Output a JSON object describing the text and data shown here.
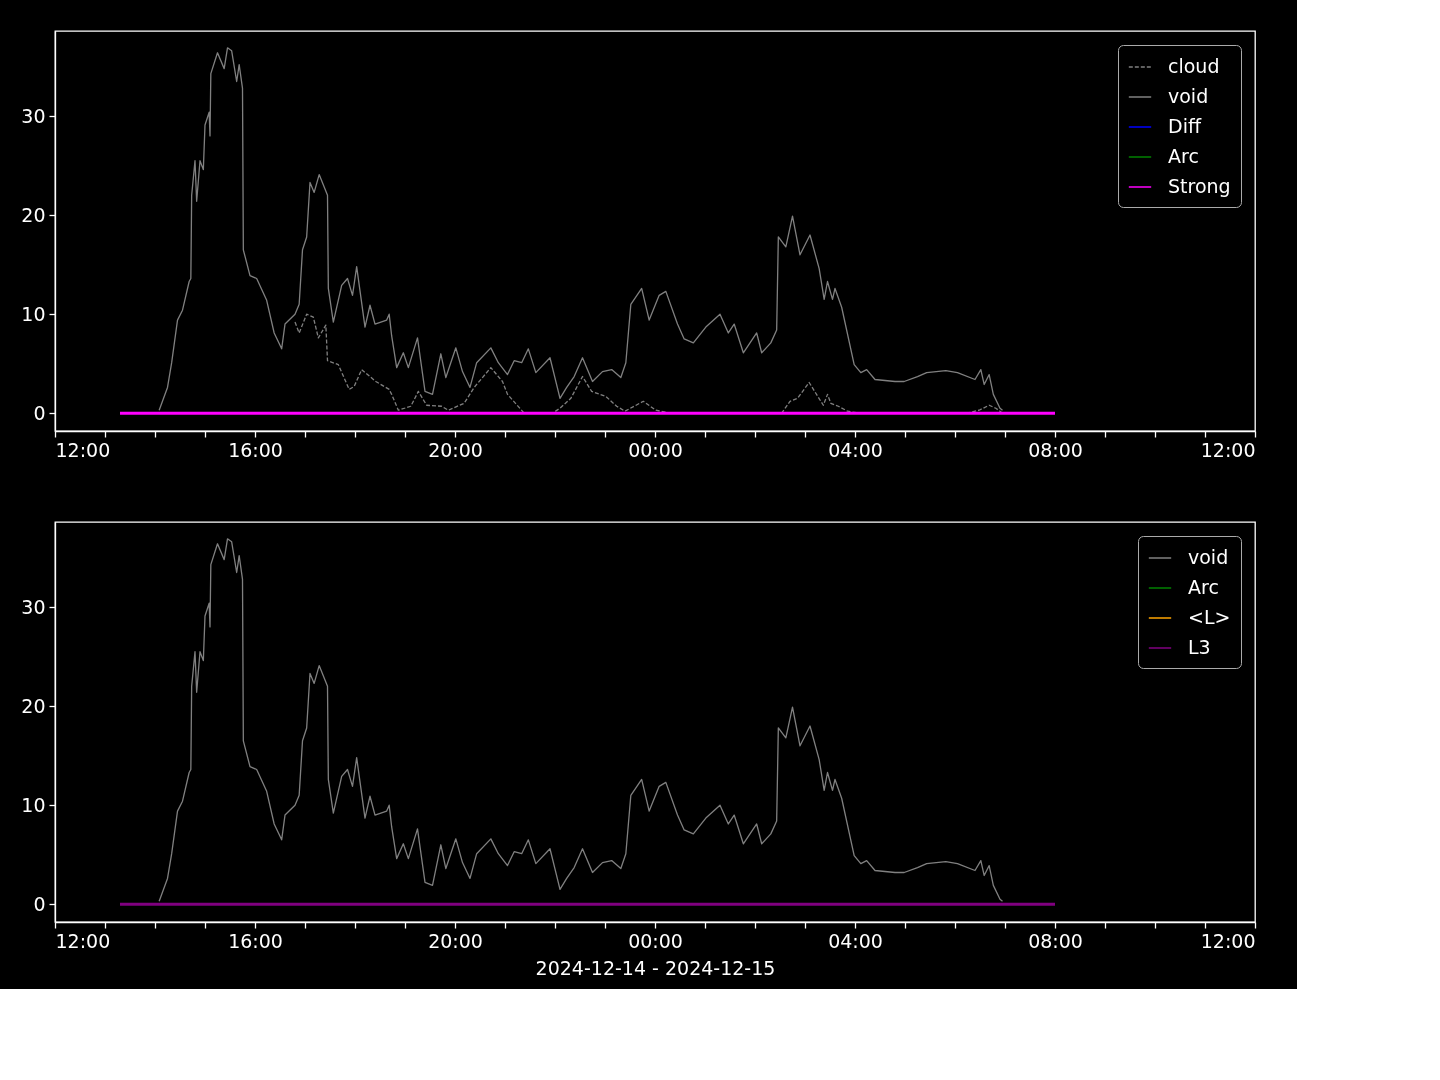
{
  "chart_data": [
    {
      "type": "line",
      "legend": "top right",
      "xlim": [
        "2024-12-14T12:00",
        "2024-12-15T12:00"
      ],
      "xticks": [
        {
          "value": "2024-12-14T12:00",
          "label": "12:00"
        },
        {
          "value": "2024-12-14T13:00",
          "label": null
        },
        {
          "value": "2024-12-14T14:00",
          "label": null
        },
        {
          "value": "2024-12-14T15:00",
          "label": null
        },
        {
          "value": "2024-12-14T16:00",
          "label": "16:00"
        },
        {
          "value": "2024-12-14T17:00",
          "label": null
        },
        {
          "value": "2024-12-14T18:00",
          "label": null
        },
        {
          "value": "2024-12-14T19:00",
          "label": null
        },
        {
          "value": "2024-12-14T20:00",
          "label": "20:00"
        },
        {
          "value": "2024-12-14T21:00",
          "label": null
        },
        {
          "value": "2024-12-14T22:00",
          "label": null
        },
        {
          "value": "2024-12-14T23:00",
          "label": null
        },
        {
          "value": "2024-12-15T00:00",
          "label": "00:00"
        },
        {
          "value": "2024-12-15T01:00",
          "label": null
        },
        {
          "value": "2024-12-15T02:00",
          "label": null
        },
        {
          "value": "2024-12-15T03:00",
          "label": null
        },
        {
          "value": "2024-12-15T04:00",
          "label": "04:00"
        },
        {
          "value": "2024-12-15T05:00",
          "label": null
        },
        {
          "value": "2024-12-15T06:00",
          "label": null
        },
        {
          "value": "2024-12-15T07:00",
          "label": null
        },
        {
          "value": "2024-12-15T08:00",
          "label": "08:00"
        },
        {
          "value": "2024-12-15T09:00",
          "label": null
        },
        {
          "value": "2024-12-15T10:00",
          "label": null
        },
        {
          "value": "2024-12-15T11:00",
          "label": null
        },
        {
          "value": "2024-12-15T12:00",
          "label": "12:00"
        }
      ],
      "ylim": [
        -1.8,
        38.6
      ],
      "yticks": [
        0,
        10,
        20,
        30
      ],
      "series": [
        {
          "name": "cloud",
          "color": "#808080",
          "line_style": "dashed",
          "x": [
            "2024-12-14T16:48",
            "2024-12-14T16:53",
            "2024-12-14T17:02",
            "2024-12-14T17:10",
            "2024-12-14T17:16",
            "2024-12-14T17:25",
            "2024-12-14T17:27",
            "2024-12-14T17:40",
            "2024-12-14T17:53",
            "2024-12-14T17:59",
            "2024-12-14T18:08",
            "2024-12-14T18:25",
            "2024-12-14T18:41",
            "2024-12-14T18:44",
            "2024-12-14T18:52",
            "2024-12-14T19:07",
            "2024-12-14T19:16",
            "2024-12-14T19:26",
            "2024-12-14T19:44",
            "2024-12-14T19:52",
            "2024-12-14T20:11",
            "2024-12-14T20:23",
            "2024-12-14T20:43",
            "2024-12-14T20:57",
            "2024-12-14T21:03",
            "2024-12-14T21:23",
            "2024-12-14T21:57",
            "2024-12-14T22:06",
            "2024-12-14T22:19",
            "2024-12-14T22:33",
            "2024-12-14T22:44",
            "2024-12-14T23:01",
            "2024-12-14T23:14",
            "2024-12-14T23:24",
            "2024-12-14T23:46",
            "2024-12-15T00:01",
            "2024-12-15T00:18",
            "2024-12-15T02:32",
            "2024-12-15T02:42",
            "2024-12-15T02:51",
            "2024-12-15T03:05",
            "2024-12-15T03:16",
            "2024-12-15T03:22",
            "2024-12-15T03:27",
            "2024-12-15T03:31",
            "2024-12-15T03:40",
            "2024-12-15T03:51",
            "2024-12-15T04:05",
            "2024-12-15T06:15",
            "2024-12-15T06:29",
            "2024-12-15T06:41",
            "2024-12-15T06:49",
            "2024-12-15T06:57"
          ],
          "values": [
            9.2,
            8.1,
            10,
            9.7,
            7.6,
            8.9,
            5.3,
            4.9,
            2.4,
            2.7,
            4.4,
            3.2,
            2.4,
            1.9,
            0.3,
            0.7,
            2.2,
            0.8,
            0.7,
            0.3,
            1,
            2.6,
            4.6,
            3.2,
            1.9,
            0,
            0,
            0.5,
            1.5,
            3.7,
            2.2,
            1.7,
            0.7,
            0.2,
            1.2,
            0.3,
            0,
            0,
            1.2,
            1.5,
            3.1,
            1.6,
            0.8,
            1.9,
            1,
            0.7,
            0.2,
            0,
            0,
            0.3,
            0.8,
            0.5,
            0
          ]
        },
        {
          "name": "void",
          "color": "#808080",
          "x": [
            "2024-12-14T14:05",
            "2024-12-14T14:15",
            "2024-12-14T14:20",
            "2024-12-14T14:27",
            "2024-12-14T14:33",
            "2024-12-14T14:41",
            "2024-12-14T14:43",
            "2024-12-14T14:44",
            "2024-12-14T14:48",
            "2024-12-14T14:50",
            "2024-12-14T14:54",
            "2024-12-14T14:58",
            "2024-12-14T15:00",
            "2024-12-14T15:05",
            "2024-12-14T15:06",
            "2024-12-14T15:07",
            "2024-12-14T15:15",
            "2024-12-14T15:23",
            "2024-12-14T15:27",
            "2024-12-14T15:32",
            "2024-12-14T15:38",
            "2024-12-14T15:41",
            "2024-12-14T15:45",
            "2024-12-14T15:46",
            "2024-12-14T15:54",
            "2024-12-14T16:02",
            "2024-12-14T16:14",
            "2024-12-14T16:23",
            "2024-12-14T16:32",
            "2024-12-14T16:36",
            "2024-12-14T16:48",
            "2024-12-14T16:53",
            "2024-12-14T16:57",
            "2024-12-14T17:02",
            "2024-12-14T17:06",
            "2024-12-14T17:11",
            "2024-12-14T17:17",
            "2024-12-14T17:27",
            "2024-12-14T17:28",
            "2024-12-14T17:34",
            "2024-12-14T17:44",
            "2024-12-14T17:51",
            "2024-12-14T17:57",
            "2024-12-14T18:02",
            "2024-12-14T18:12",
            "2024-12-14T18:18",
            "2024-12-14T18:24",
            "2024-12-14T18:38",
            "2024-12-14T18:41",
            "2024-12-14T18:44",
            "2024-12-14T18:50",
            "2024-12-14T18:58",
            "2024-12-14T19:04",
            "2024-12-14T19:15",
            "2024-12-14T19:24",
            "2024-12-14T19:33",
            "2024-12-14T19:43",
            "2024-12-14T19:49",
            "2024-12-14T20:01",
            "2024-12-14T20:09",
            "2024-12-14T20:18",
            "2024-12-14T20:26",
            "2024-12-14T20:43",
            "2024-12-14T20:52",
            "2024-12-14T21:03",
            "2024-12-14T21:11",
            "2024-12-14T21:20",
            "2024-12-14T21:28",
            "2024-12-14T21:37",
            "2024-12-14T21:54",
            "2024-12-14T22:06",
            "2024-12-14T22:14",
            "2024-12-14T22:23",
            "2024-12-14T22:33",
            "2024-12-14T22:45",
            "2024-12-14T22:57",
            "2024-12-14T23:08",
            "2024-12-14T23:19",
            "2024-12-14T23:25",
            "2024-12-14T23:31",
            "2024-12-14T23:44",
            "2024-12-14T23:53",
            "2024-12-15T00:05",
            "2024-12-15T00:13",
            "2024-12-15T00:27",
            "2024-12-15T00:35",
            "2024-12-15T00:46",
            "2024-12-15T01:01",
            "2024-12-15T01:18",
            "2024-12-15T01:28",
            "2024-12-15T01:35",
            "2024-12-15T01:46",
            "2024-12-15T02:02",
            "2024-12-15T02:08",
            "2024-12-15T02:19",
            "2024-12-15T02:26",
            "2024-12-15T02:28",
            "2024-12-15T02:37",
            "2024-12-15T02:45",
            "2024-12-15T02:54",
            "2024-12-15T03:06",
            "2024-12-15T03:17",
            "2024-12-15T03:23",
            "2024-12-15T03:27",
            "2024-12-15T03:33",
            "2024-12-15T03:36",
            "2024-12-15T03:44",
            "2024-12-15T03:59",
            "2024-12-15T04:07",
            "2024-12-15T04:14",
            "2024-12-15T04:24",
            "2024-12-15T04:48",
            "2024-12-15T04:59",
            "2024-12-15T05:15",
            "2024-12-15T05:26",
            "2024-12-15T05:49",
            "2024-12-15T06:03",
            "2024-12-15T06:24",
            "2024-12-15T06:31",
            "2024-12-15T06:35",
            "2024-12-15T06:41",
            "2024-12-15T06:46",
            "2024-12-15T06:54",
            "2024-12-15T06:57"
          ],
          "values": [
            0.3,
            2.6,
            5.1,
            9.4,
            10.4,
            13.3,
            13.6,
            22,
            25.5,
            21.4,
            25.5,
            24.6,
            29.1,
            30.4,
            28,
            34.3,
            36.4,
            34.8,
            36.9,
            36.6,
            33.5,
            35.2,
            32.8,
            16.5,
            13.9,
            13.6,
            11.4,
            8.1,
            6.5,
            9,
            10,
            11,
            16.5,
            17.8,
            23.3,
            22.3,
            24.1,
            22,
            12.6,
            9.2,
            12.9,
            13.6,
            11.9,
            14.8,
            8.7,
            10.9,
            9,
            9.4,
            10,
            7.8,
            4.6,
            6.1,
            4.6,
            7.6,
            2.2,
            1.9,
            6,
            3.6,
            6.6,
            4.2,
            2.6,
            5.1,
            6.6,
            5.1,
            3.9,
            5.3,
            5.1,
            6.5,
            4.1,
            5.6,
            1.5,
            2.6,
            3.7,
            5.6,
            3.2,
            4.2,
            4.4,
            3.6,
            5.1,
            11,
            12.6,
            9.4,
            11.9,
            12.3,
            9,
            7.5,
            7.1,
            8.7,
            10,
            8.1,
            9,
            6.1,
            8.1,
            6.1,
            7.1,
            8.4,
            17.8,
            16.8,
            19.9,
            16,
            18,
            14.6,
            11.5,
            13.3,
            11.5,
            12.6,
            10.7,
            4.9,
            4.1,
            4.4,
            3.4,
            3.2,
            3.2,
            3.7,
            4.1,
            4.3,
            4.1,
            3.4,
            4.4,
            2.9,
            3.9,
            1.9,
            0.5,
            0.3
          ]
        },
        {
          "name": "Diff",
          "color": "#0000ff"
        },
        {
          "name": "Arc",
          "color": "#008000"
        },
        {
          "name": "Strong",
          "color": "#ff00ff",
          "x": [
            "2024-12-14T13:18",
            "2024-12-15T08:00"
          ],
          "values": [
            0,
            0
          ]
        }
      ]
    },
    {
      "type": "line",
      "legend": "top right",
      "xlabel": "2024-12-14 - 2024-12-15",
      "xlim": [
        "2024-12-14T12:00",
        "2024-12-15T12:00"
      ],
      "xticks": [
        {
          "value": "2024-12-14T12:00",
          "label": "12:00"
        },
        {
          "value": "2024-12-14T13:00",
          "label": null
        },
        {
          "value": "2024-12-14T14:00",
          "label": null
        },
        {
          "value": "2024-12-14T15:00",
          "label": null
        },
        {
          "value": "2024-12-14T16:00",
          "label": "16:00"
        },
        {
          "value": "2024-12-14T17:00",
          "label": null
        },
        {
          "value": "2024-12-14T18:00",
          "label": null
        },
        {
          "value": "2024-12-14T19:00",
          "label": null
        },
        {
          "value": "2024-12-14T20:00",
          "label": "20:00"
        },
        {
          "value": "2024-12-14T21:00",
          "label": null
        },
        {
          "value": "2024-12-14T22:00",
          "label": null
        },
        {
          "value": "2024-12-14T23:00",
          "label": null
        },
        {
          "value": "2024-12-15T00:00",
          "label": "00:00"
        },
        {
          "value": "2024-12-15T01:00",
          "label": null
        },
        {
          "value": "2024-12-15T02:00",
          "label": null
        },
        {
          "value": "2024-12-15T03:00",
          "label": null
        },
        {
          "value": "2024-12-15T04:00",
          "label": "04:00"
        },
        {
          "value": "2024-12-15T05:00",
          "label": null
        },
        {
          "value": "2024-12-15T06:00",
          "label": null
        },
        {
          "value": "2024-12-15T07:00",
          "label": null
        },
        {
          "value": "2024-12-15T08:00",
          "label": "08:00"
        },
        {
          "value": "2024-12-15T09:00",
          "label": null
        },
        {
          "value": "2024-12-15T10:00",
          "label": null
        },
        {
          "value": "2024-12-15T11:00",
          "label": null
        },
        {
          "value": "2024-12-15T12:00",
          "label": "12:00"
        }
      ],
      "ylim": [
        -1.8,
        38.6
      ],
      "yticks": [
        0,
        10,
        20,
        30
      ],
      "series": [
        {
          "name": "void",
          "color": "#808080",
          "x": [
            "2024-12-14T14:05",
            "2024-12-14T14:15",
            "2024-12-14T14:20",
            "2024-12-14T14:27",
            "2024-12-14T14:33",
            "2024-12-14T14:41",
            "2024-12-14T14:43",
            "2024-12-14T14:44",
            "2024-12-14T14:48",
            "2024-12-14T14:50",
            "2024-12-14T14:54",
            "2024-12-14T14:58",
            "2024-12-14T15:00",
            "2024-12-14T15:05",
            "2024-12-14T15:06",
            "2024-12-14T15:07",
            "2024-12-14T15:15",
            "2024-12-14T15:23",
            "2024-12-14T15:27",
            "2024-12-14T15:32",
            "2024-12-14T15:38",
            "2024-12-14T15:41",
            "2024-12-14T15:45",
            "2024-12-14T15:46",
            "2024-12-14T15:54",
            "2024-12-14T16:02",
            "2024-12-14T16:14",
            "2024-12-14T16:23",
            "2024-12-14T16:32",
            "2024-12-14T16:36",
            "2024-12-14T16:48",
            "2024-12-14T16:53",
            "2024-12-14T16:57",
            "2024-12-14T17:02",
            "2024-12-14T17:06",
            "2024-12-14T17:11",
            "2024-12-14T17:17",
            "2024-12-14T17:27",
            "2024-12-14T17:28",
            "2024-12-14T17:34",
            "2024-12-14T17:44",
            "2024-12-14T17:51",
            "2024-12-14T17:57",
            "2024-12-14T18:02",
            "2024-12-14T18:12",
            "2024-12-14T18:18",
            "2024-12-14T18:24",
            "2024-12-14T18:38",
            "2024-12-14T18:41",
            "2024-12-14T18:44",
            "2024-12-14T18:50",
            "2024-12-14T18:58",
            "2024-12-14T19:04",
            "2024-12-14T19:15",
            "2024-12-14T19:24",
            "2024-12-14T19:33",
            "2024-12-14T19:43",
            "2024-12-14T19:49",
            "2024-12-14T20:01",
            "2024-12-14T20:09",
            "2024-12-14T20:18",
            "2024-12-14T20:26",
            "2024-12-14T20:43",
            "2024-12-14T20:52",
            "2024-12-14T21:03",
            "2024-12-14T21:11",
            "2024-12-14T21:20",
            "2024-12-14T21:28",
            "2024-12-14T21:37",
            "2024-12-14T21:54",
            "2024-12-14T22:06",
            "2024-12-14T22:14",
            "2024-12-14T22:23",
            "2024-12-14T22:33",
            "2024-12-14T22:45",
            "2024-12-14T22:57",
            "2024-12-14T23:08",
            "2024-12-14T23:19",
            "2024-12-14T23:25",
            "2024-12-14T23:31",
            "2024-12-14T23:44",
            "2024-12-14T23:53",
            "2024-12-15T00:05",
            "2024-12-15T00:13",
            "2024-12-15T00:27",
            "2024-12-15T00:35",
            "2024-12-15T00:46",
            "2024-12-15T01:01",
            "2024-12-15T01:18",
            "2024-12-15T01:28",
            "2024-12-15T01:35",
            "2024-12-15T01:46",
            "2024-12-15T02:02",
            "2024-12-15T02:08",
            "2024-12-15T02:19",
            "2024-12-15T02:26",
            "2024-12-15T02:28",
            "2024-12-15T02:37",
            "2024-12-15T02:45",
            "2024-12-15T02:54",
            "2024-12-15T03:06",
            "2024-12-15T03:17",
            "2024-12-15T03:23",
            "2024-12-15T03:27",
            "2024-12-15T03:33",
            "2024-12-15T03:36",
            "2024-12-15T03:44",
            "2024-12-15T03:59",
            "2024-12-15T04:07",
            "2024-12-15T04:14",
            "2024-12-15T04:24",
            "2024-12-15T04:48",
            "2024-12-15T04:59",
            "2024-12-15T05:15",
            "2024-12-15T05:26",
            "2024-12-15T05:49",
            "2024-12-15T06:03",
            "2024-12-15T06:24",
            "2024-12-15T06:31",
            "2024-12-15T06:35",
            "2024-12-15T06:41",
            "2024-12-15T06:46",
            "2024-12-15T06:54",
            "2024-12-15T06:57"
          ],
          "values": [
            0.3,
            2.6,
            5.1,
            9.4,
            10.4,
            13.3,
            13.6,
            22,
            25.5,
            21.4,
            25.5,
            24.6,
            29.1,
            30.4,
            28,
            34.3,
            36.4,
            34.8,
            36.9,
            36.6,
            33.5,
            35.2,
            32.8,
            16.5,
            13.9,
            13.6,
            11.4,
            8.1,
            6.5,
            9,
            10,
            11,
            16.5,
            17.8,
            23.3,
            22.3,
            24.1,
            22,
            12.6,
            9.2,
            12.9,
            13.6,
            11.9,
            14.8,
            8.7,
            10.9,
            9,
            9.4,
            10,
            7.8,
            4.6,
            6.1,
            4.6,
            7.6,
            2.2,
            1.9,
            6,
            3.6,
            6.6,
            4.2,
            2.6,
            5.1,
            6.6,
            5.1,
            3.9,
            5.3,
            5.1,
            6.5,
            4.1,
            5.6,
            1.5,
            2.6,
            3.7,
            5.6,
            3.2,
            4.2,
            4.4,
            3.6,
            5.1,
            11,
            12.6,
            9.4,
            11.9,
            12.3,
            9,
            7.5,
            7.1,
            8.7,
            10,
            8.1,
            9,
            6.1,
            8.1,
            6.1,
            7.1,
            8.4,
            17.8,
            16.8,
            19.9,
            16,
            18,
            14.6,
            11.5,
            13.3,
            11.5,
            12.6,
            10.7,
            4.9,
            4.1,
            4.4,
            3.4,
            3.2,
            3.2,
            3.7,
            4.1,
            4.3,
            4.1,
            3.4,
            4.4,
            2.9,
            3.9,
            1.9,
            0.5,
            0.3
          ]
        },
        {
          "name": "Arc",
          "color": "#008000"
        },
        {
          "name": "<L>",
          "color": "#ffa500"
        },
        {
          "name": "L3",
          "color": "#800080",
          "x": [
            "2024-12-14T13:18",
            "2024-12-15T08:00"
          ],
          "values": [
            0,
            0
          ]
        }
      ]
    }
  ]
}
